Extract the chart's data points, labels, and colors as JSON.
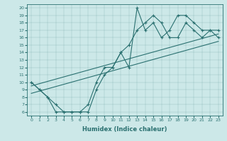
{
  "xlabel": "Humidex (Indice chaleur)",
  "xlim": [
    0,
    23
  ],
  "ylim": [
    6,
    20
  ],
  "xticks": [
    0,
    1,
    2,
    3,
    4,
    5,
    6,
    7,
    8,
    9,
    10,
    11,
    12,
    13,
    14,
    15,
    16,
    17,
    18,
    19,
    20,
    21,
    22,
    23
  ],
  "yticks": [
    6,
    7,
    8,
    9,
    10,
    11,
    12,
    13,
    14,
    15,
    16,
    17,
    18,
    19,
    20
  ],
  "bg_color": "#cce8e8",
  "line_color": "#2a7070",
  "line1_x": [
    0,
    1,
    2,
    3,
    4,
    5,
    6,
    7,
    8,
    9,
    10,
    11,
    12,
    13,
    14,
    15,
    16,
    17,
    18,
    19,
    20,
    21,
    22,
    23
  ],
  "line1_y": [
    10,
    9,
    8,
    7,
    6,
    6,
    6,
    6,
    9,
    11,
    12,
    14,
    15,
    17,
    18,
    19,
    18,
    16,
    16,
    18,
    17,
    16,
    17,
    16
  ],
  "line2_x": [
    0,
    1,
    2,
    3,
    4,
    5,
    6,
    7,
    8,
    9,
    10,
    11,
    12,
    13,
    14,
    15,
    16,
    17,
    18,
    19,
    20,
    21,
    22,
    23
  ],
  "line2_y": [
    10,
    9,
    8,
    6,
    6,
    6,
    6,
    7,
    10,
    12,
    12,
    14,
    12,
    20,
    17,
    18,
    16,
    17,
    19,
    19,
    18,
    17,
    17,
    17
  ],
  "line3_x": [
    0,
    23
  ],
  "line3_y": [
    9.5,
    16.5
  ],
  "line4_x": [
    0,
    23
  ],
  "line4_y": [
    8.5,
    15.5
  ]
}
